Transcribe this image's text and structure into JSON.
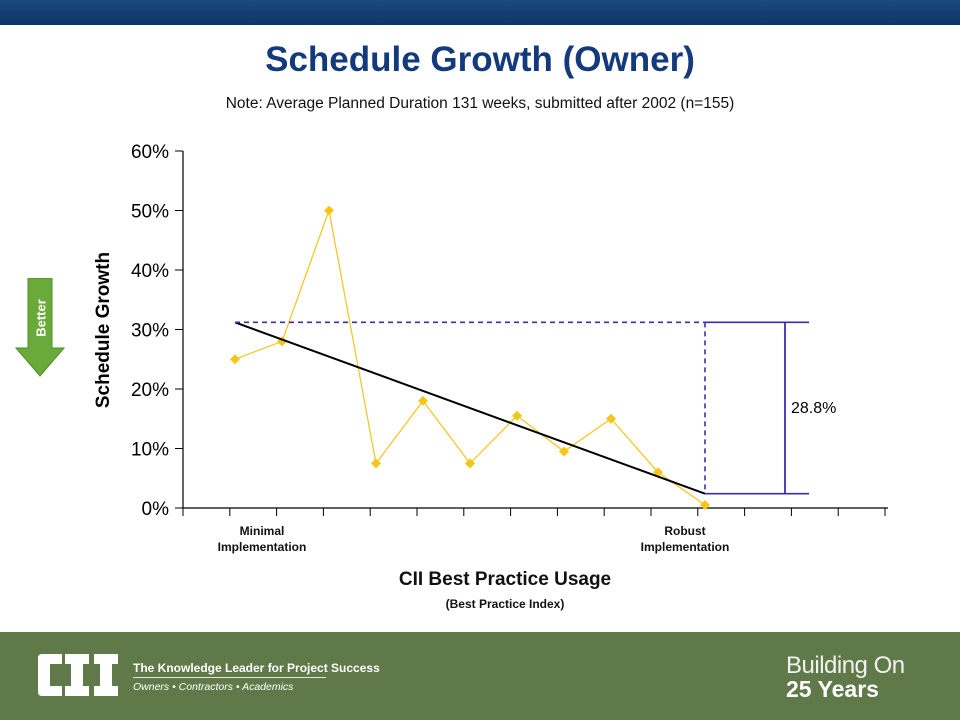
{
  "header": {
    "title": "Schedule Growth (Owner)",
    "note": "Note:  Average Planned Duration 131 weeks, submitted after 2002 (n=155)"
  },
  "badge": {
    "label": "Better",
    "color": "#6aaa3a"
  },
  "chart_data": {
    "type": "line",
    "ylabel": "Schedule Growth",
    "xlabel": "CII Best Practice Usage",
    "xsublabel": "(Best Practice Index)",
    "category_labels": [
      "Minimal\nImplementation",
      "Robust\nImplementation"
    ],
    "ylim": [
      0,
      0.6
    ],
    "yticks": [
      0,
      0.1,
      0.2,
      0.3,
      0.4,
      0.5,
      0.6
    ],
    "ytick_labels": [
      "0%",
      "10%",
      "20%",
      "30%",
      "40%",
      "50%",
      "60%"
    ],
    "grid": false,
    "series": [
      {
        "values": [
          0.25,
          0.28,
          0.5,
          0.075,
          0.18,
          0.075,
          0.155,
          0.095,
          0.15,
          0.06,
          0.005
        ],
        "color": "#f5c518"
      }
    ],
    "trendline": {
      "start": 0.312,
      "end": 0.024,
      "color": "#000000"
    },
    "annotation": {
      "label": "28.8%",
      "color": "#3a2fb0"
    }
  },
  "footer": {
    "logo_text": "CII",
    "tagline": "The Knowledge Leader for Project Success",
    "subtagline": "Owners • Contractors • Academics",
    "anniversary_line1": "Building On",
    "anniversary_line2": "25 Years",
    "background": "#5f7a48"
  }
}
